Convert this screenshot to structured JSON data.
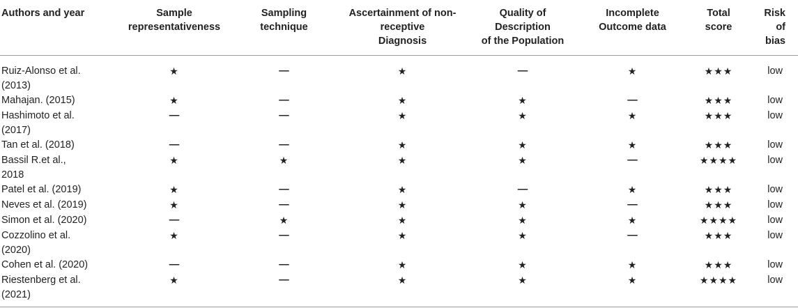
{
  "headers": {
    "authors": "Authors and year",
    "sample_rep_1": "Sample",
    "sample_rep_2": "representativeness",
    "sampling_1": "Sampling",
    "sampling_2": "technique",
    "ascertain_1": "Ascertainment of non-",
    "ascertain_2": "receptive",
    "ascertain_3": "Diagnosis",
    "quality_1": "Quality of",
    "quality_2": "Description",
    "quality_3": "of the Population",
    "incomplete_1": "Incomplete",
    "incomplete_2": "Outcome data",
    "total_1": "Total",
    "total_2": "score",
    "risk_1": "Risk of",
    "risk_2": "bias"
  },
  "rows": [
    {
      "author_1": "Ruiz-Alonso et al.",
      "author_2": "(2013)",
      "rep": "★",
      "tech": "—",
      "asc": "★",
      "qual": "—",
      "inc": "★",
      "total": "★★★",
      "risk": "low"
    },
    {
      "author_1": "Mahajan. (2015)",
      "author_2": "",
      "rep": "★",
      "tech": "—",
      "asc": "★",
      "qual": "★",
      "inc": "—",
      "total": "★★★",
      "risk": "low"
    },
    {
      "author_1": "Hashimoto et al.",
      "author_2": "(2017)",
      "rep": "—",
      "tech": "—",
      "asc": "★",
      "qual": "★",
      "inc": "★",
      "total": "★★★",
      "risk": "low"
    },
    {
      "author_1": "Tan et al. (2018)",
      "author_2": "",
      "rep": "—",
      "tech": "—",
      "asc": "★",
      "qual": "★",
      "inc": "★",
      "total": "★★★",
      "risk": "low"
    },
    {
      "author_1": "Bassil R.et al.,",
      "author_2": "2018",
      "rep": "★",
      "tech": "★",
      "asc": "★",
      "qual": "★",
      "inc": "—",
      "total": "★★★★",
      "risk": "low"
    },
    {
      "author_1": "Patel et al. (2019)",
      "author_2": "",
      "rep": "★",
      "tech": "—",
      "asc": "★",
      "qual": "—",
      "inc": "★",
      "total": "★★★",
      "risk": "low"
    },
    {
      "author_1": "Neves et al. (2019)",
      "author_2": "",
      "rep": "★",
      "tech": "—",
      "asc": "★",
      "qual": "★",
      "inc": "—",
      "total": "★★★",
      "risk": "low"
    },
    {
      "author_1": "Simon et al. (2020)",
      "author_2": "",
      "rep": "—",
      "tech": "★",
      "asc": "★",
      "qual": "★",
      "inc": "★",
      "total": "★★★★",
      "risk": "low"
    },
    {
      "author_1": "Cozzolino et al.",
      "author_2": "(2020)",
      "rep": "★",
      "tech": "—",
      "asc": "★",
      "qual": "★",
      "inc": "—",
      "total": "★★★",
      "risk": "low"
    },
    {
      "author_1": "Cohen et al. (2020)",
      "author_2": "",
      "rep": "—",
      "tech": "—",
      "asc": "★",
      "qual": "★",
      "inc": "★",
      "total": "★★★",
      "risk": "low"
    },
    {
      "author_1": "Riestenberg et al.",
      "author_2": "(2021)",
      "rep": "★",
      "tech": "—",
      "asc": "★",
      "qual": "★",
      "inc": "★",
      "total": "★★★★",
      "risk": "low"
    }
  ]
}
